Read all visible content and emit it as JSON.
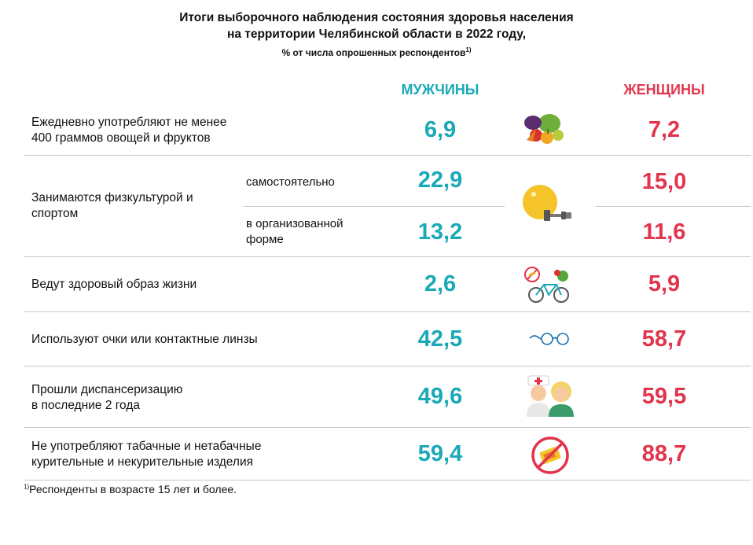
{
  "title": {
    "line1": "Итоги выборочного наблюдения состояния здоровья населения",
    "line2": "на территории Челябинской области в 2022 году,",
    "line3": "% от числа опрошенных респондентов",
    "footnote_mark": "1)"
  },
  "headers": {
    "men": "МУЖЧИНЫ",
    "women": "ЖЕНЩИНЫ"
  },
  "rows": [
    {
      "label_1": "Ежедневно употребляют не менее",
      "label_2": "400 граммов овощей и фруктов",
      "men": "6,9",
      "women": "7,2",
      "icon": "fruits-vegetables-icon"
    },
    {
      "label_1": "Занимаются физкультурой и",
      "label_2": "спортом",
      "icon": "sport-ball-dumbbell-icon",
      "sub": [
        {
          "label_1": "самостоятельно",
          "label_2": "",
          "men": "22,9",
          "women": "15,0"
        },
        {
          "label_1": "в организованной",
          "label_2": "форме",
          "men": "13,2",
          "women": "11,6"
        }
      ]
    },
    {
      "label_1": "Ведут здоровый образ жизни",
      "label_2": "",
      "men": "2,6",
      "women": "5,9",
      "icon": "healthy-lifestyle-bicycle-icon"
    },
    {
      "label_1": "Используют очки или контактные линзы",
      "label_2": "",
      "men": "42,5",
      "women": "58,7",
      "icon": "glasses-icon"
    },
    {
      "label_1": "Прошли диспансеризацию",
      "label_2": "в последние 2 года",
      "men": "49,6",
      "women": "59,5",
      "icon": "doctor-patient-icon"
    },
    {
      "label_1": "Не употребляют табачные и нетабачные",
      "label_2": "курительные и некурительные изделия",
      "men": "59,4",
      "women": "88,7",
      "icon": "no-smoking-icon"
    }
  ],
  "footnote": {
    "mark": "1)",
    "text": "Респонденты в возрасте 15 лет и более."
  },
  "colors": {
    "men": "#1aa9b7",
    "women": "#e2354d",
    "divider": "#c8c8c8"
  }
}
